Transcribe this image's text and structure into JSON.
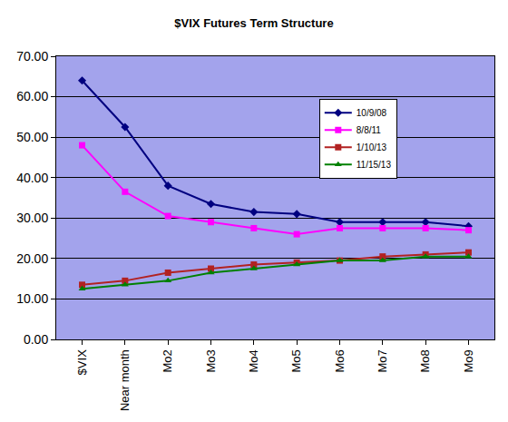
{
  "chart_data": {
    "type": "line",
    "title": "$VIX Futures Term Structure",
    "categories": [
      "$VIX",
      "Near month",
      "Mo2",
      "Mo3",
      "Mo4",
      "Mo5",
      "Mo6",
      "Mo7",
      "Mo8",
      "Mo9"
    ],
    "series": [
      {
        "name": "10/9/08",
        "color": "#000080",
        "marker": "diamond",
        "line_style": "solid",
        "values": [
          64,
          52.5,
          38,
          33.5,
          31.5,
          31,
          29,
          29,
          29,
          28
        ]
      },
      {
        "name": "8/8/11",
        "color": "#ff00ff",
        "marker": "square",
        "line_style": "solid",
        "values": [
          48,
          36.5,
          30.5,
          29,
          27.5,
          26,
          27.5,
          27.5,
          27.5,
          27
        ]
      },
      {
        "name": "1/10/13",
        "color": "#b22222",
        "marker": "square",
        "line_style": "solid",
        "values": [
          13.5,
          14.5,
          16.5,
          17.5,
          18.5,
          19,
          19.5,
          20.5,
          21,
          21.5
        ]
      },
      {
        "name": "11/15/13",
        "color": "#008000",
        "marker": "triangle",
        "line_style": "solid",
        "values": [
          12.5,
          13.5,
          14.5,
          16.5,
          17.5,
          18.5,
          19.5,
          19.5,
          20.5,
          20.5
        ]
      }
    ],
    "ylim": [
      0,
      70
    ],
    "yticks": [
      {
        "value": 0,
        "label": "0.00"
      },
      {
        "value": 10,
        "label": "10.00"
      },
      {
        "value": 20,
        "label": "20.00"
      },
      {
        "value": 30,
        "label": "30.00"
      },
      {
        "value": 40,
        "label": "40.00"
      },
      {
        "value": 50,
        "label": "50.00"
      },
      {
        "value": 60,
        "label": "60.00"
      },
      {
        "value": 70,
        "label": "70.00"
      }
    ],
    "grid": true,
    "legend": "upper right"
  }
}
